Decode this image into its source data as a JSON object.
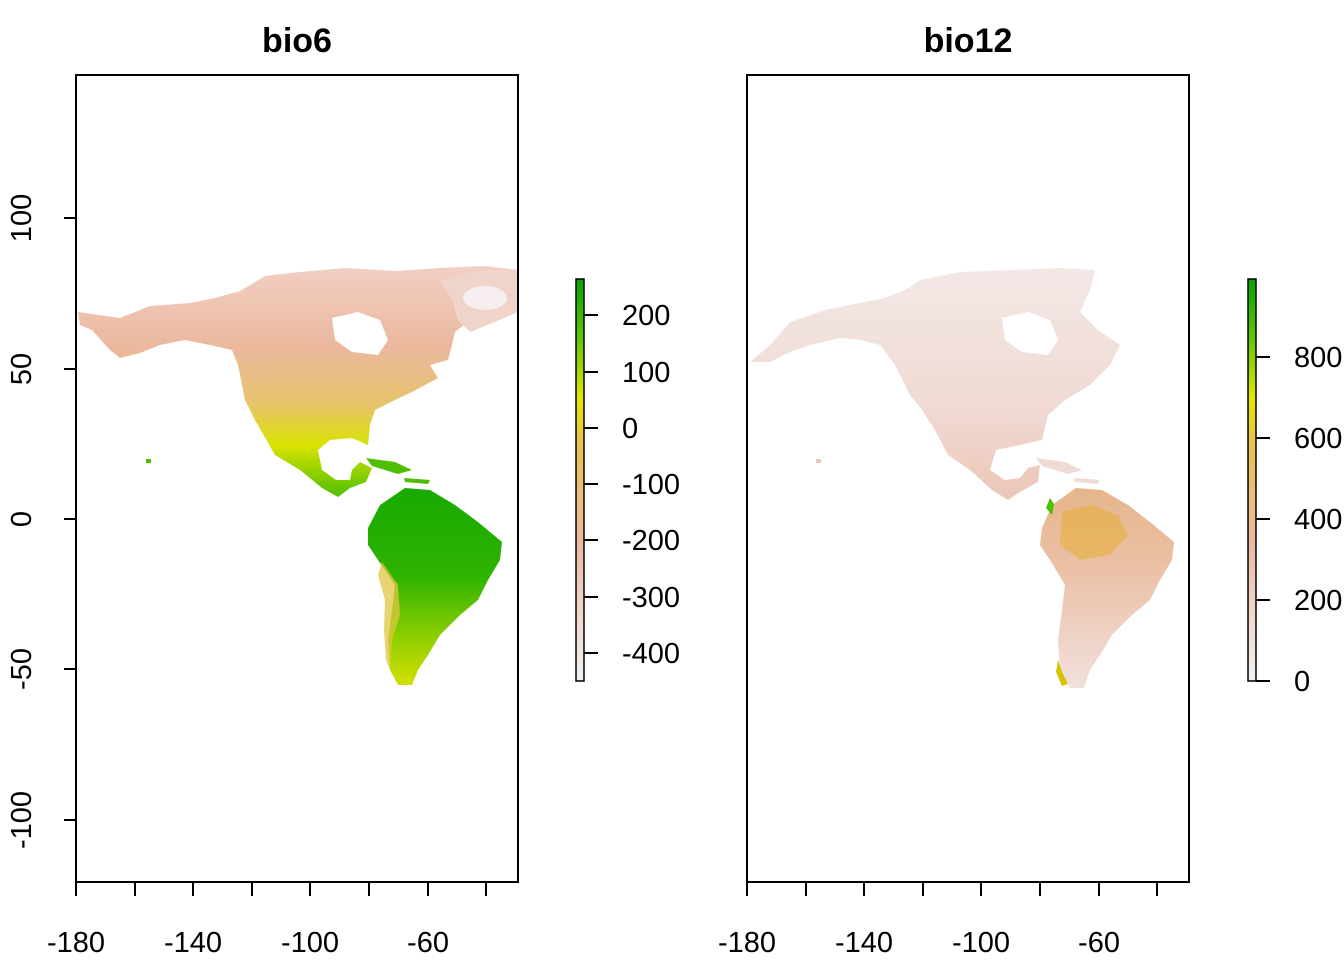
{
  "panels": [
    {
      "title": "bio6",
      "x_ticks": [
        "-180",
        "-140",
        "-100",
        "-60"
      ],
      "y_ticks": [
        "100",
        "50",
        "0",
        "-50",
        "-100"
      ],
      "legend_ticks": [
        "200",
        "100",
        "0",
        "-100",
        "-200",
        "-300",
        "-400"
      ],
      "legend_range": [
        -450,
        260
      ]
    },
    {
      "title": "bio12",
      "x_ticks": [
        "-180",
        "-140",
        "-100",
        "-60"
      ],
      "legend_ticks": [
        "800",
        "600",
        "400",
        "200",
        "0"
      ],
      "legend_range": [
        0,
        1000
      ]
    }
  ],
  "extent": {
    "lon": [
      -180,
      -30
    ],
    "lat": [
      -120,
      148
    ]
  },
  "colors": {
    "low": "#f2f2f2",
    "mid_low": "#e8b89c",
    "mid": "#e6d400",
    "high": "#00a600"
  }
}
